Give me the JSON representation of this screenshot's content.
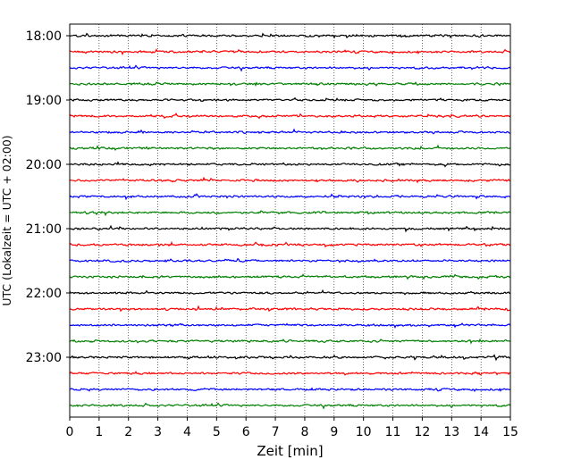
{
  "chart_data": {
    "type": "line",
    "title": "",
    "xlabel": "Zeit  [min]",
    "ylabel": "UTC (Lokalzeit = UTC + 02:00)",
    "xlim": [
      0,
      15
    ],
    "x_ticks": [
      0,
      1,
      2,
      3,
      4,
      5,
      6,
      7,
      8,
      9,
      10,
      11,
      12,
      13,
      14,
      15
    ],
    "y_tick_labels": [
      "18:00",
      "19:00",
      "20:00",
      "21:00",
      "22:00",
      "23:00"
    ],
    "y_tick_rows": [
      0,
      4,
      8,
      12,
      16,
      20
    ],
    "row_count": 24,
    "row_interval_minutes": 15,
    "start_time": "18:00",
    "color_cycle": [
      "#000000",
      "#ff0000",
      "#0000ff",
      "#008000"
    ],
    "vertical_grid": "dotted",
    "series_kind": "seismogram traces, one 15-minute trace per row"
  }
}
